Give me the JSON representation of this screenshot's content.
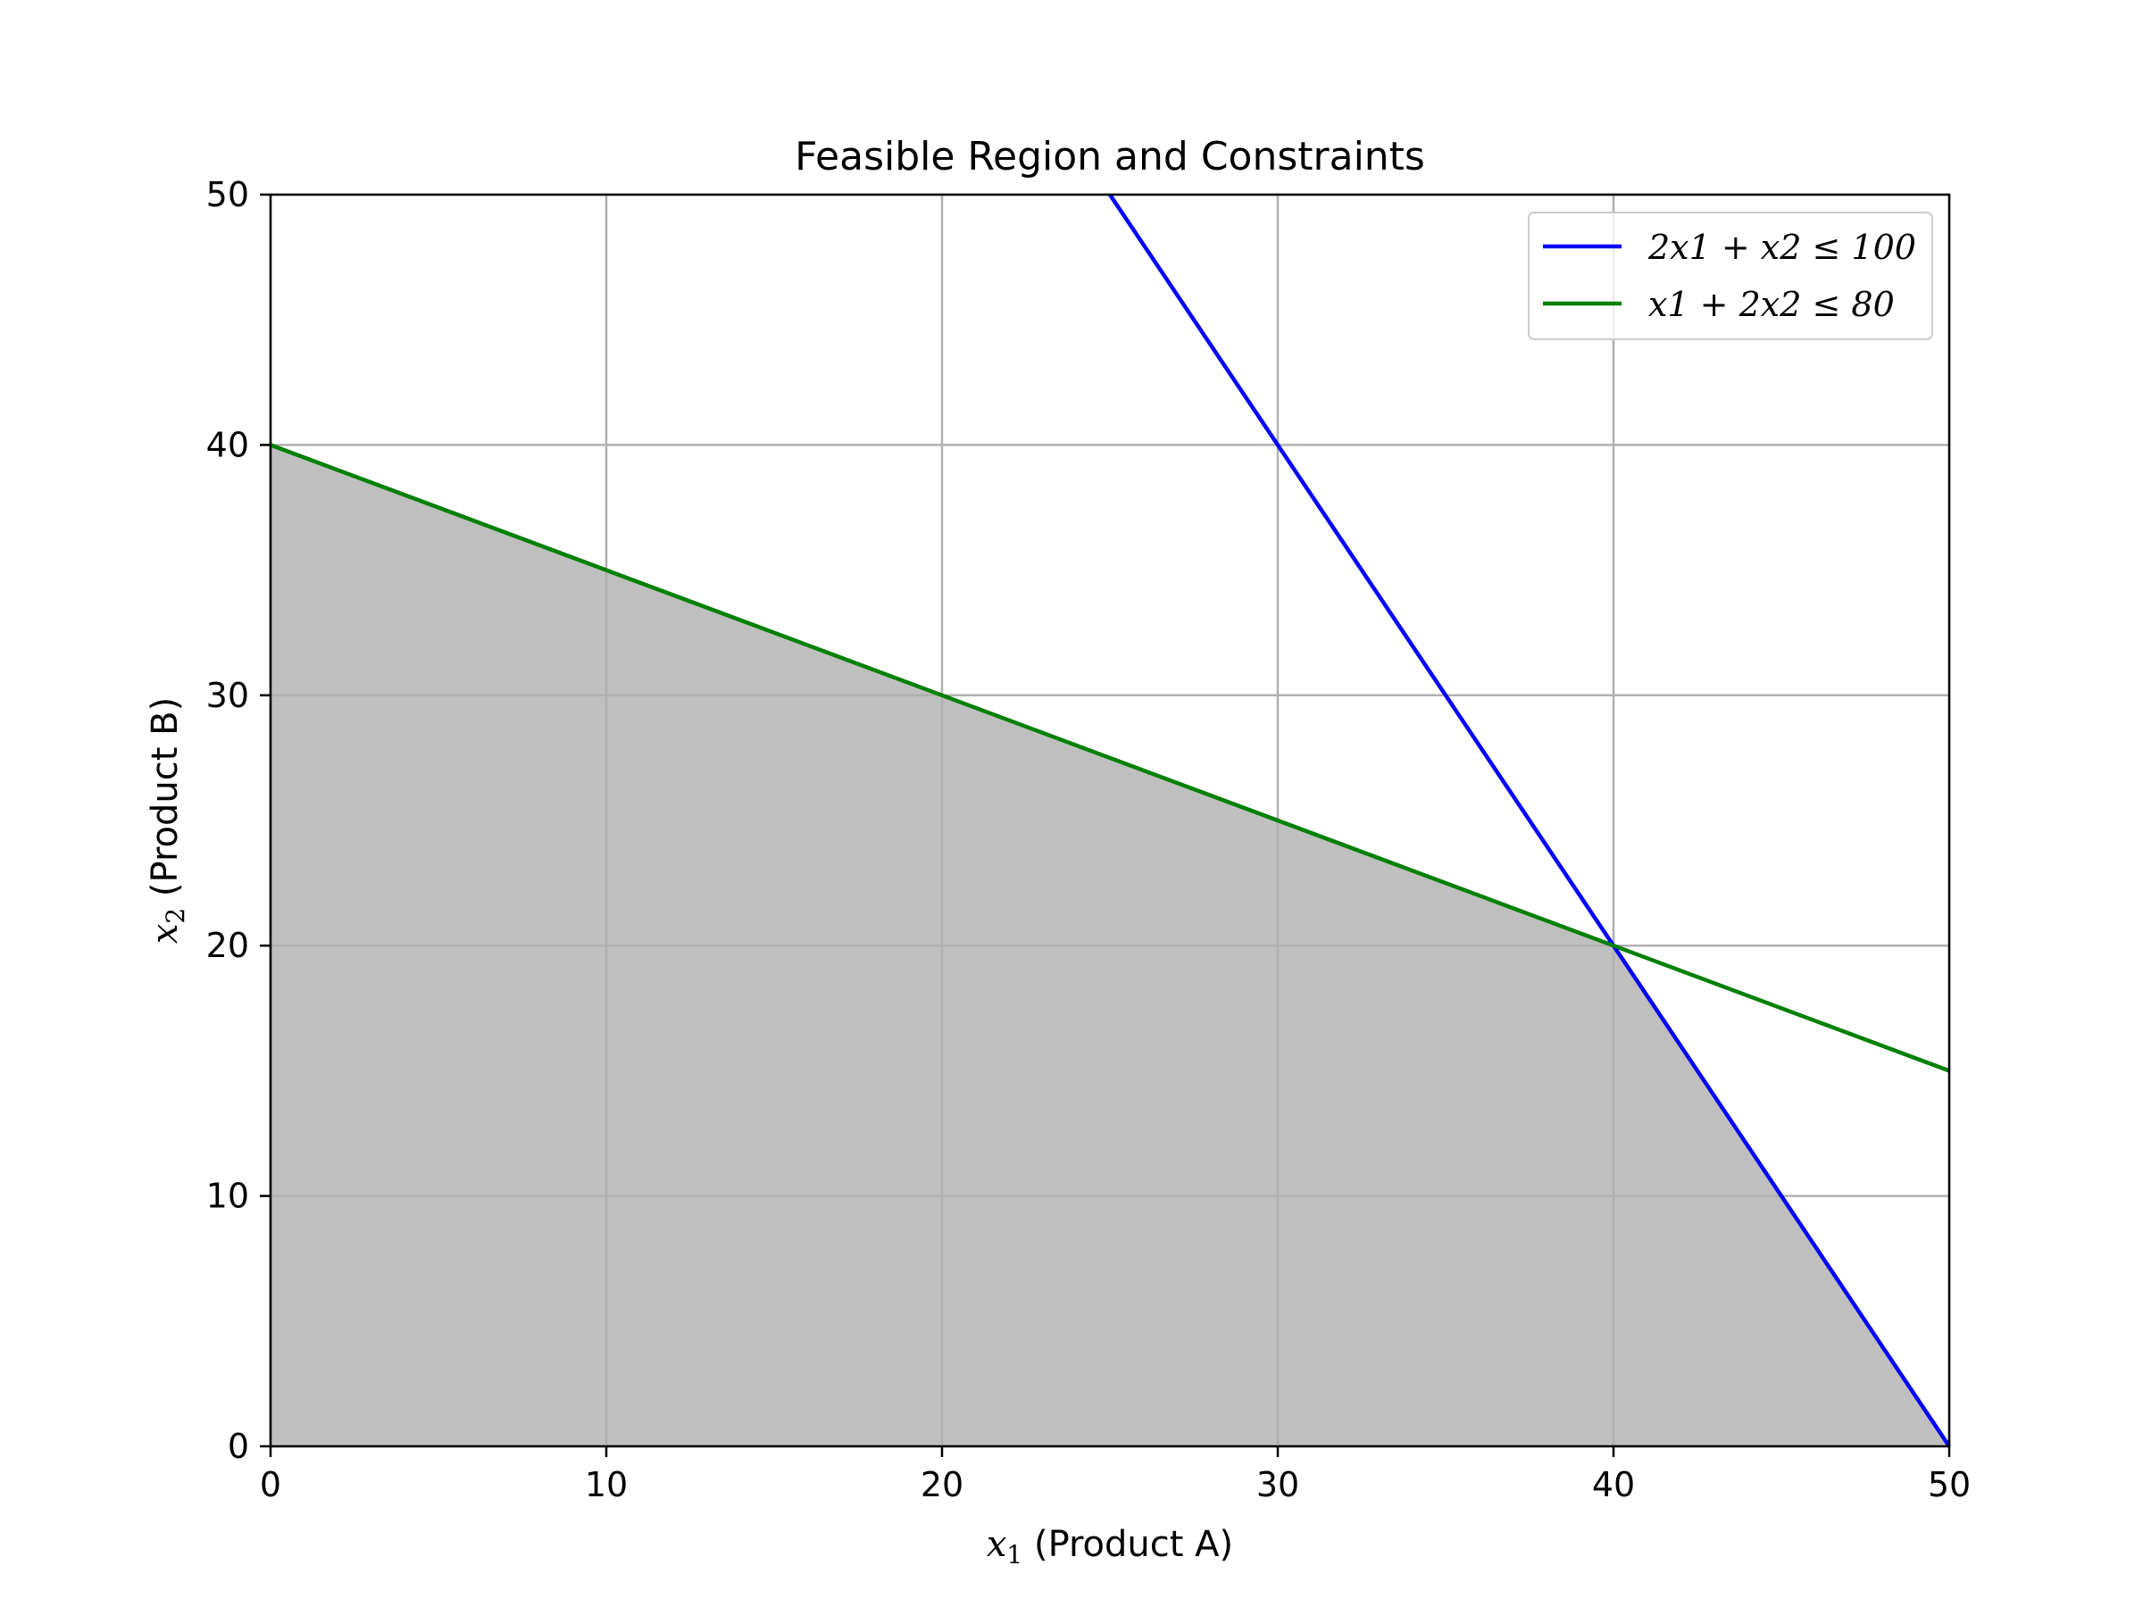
{
  "chart_data": {
    "type": "line",
    "title": "Feasible Region and Constraints",
    "xlabel": {
      "var": "x",
      "sub": "1",
      "rest": " (Product A)"
    },
    "ylabel": {
      "var": "x",
      "sub": "2",
      "rest": " (Product B)"
    },
    "xlim": [
      0,
      50
    ],
    "ylim": [
      0,
      50
    ],
    "xticks": [
      0,
      10,
      20,
      30,
      40,
      50
    ],
    "yticks": [
      0,
      10,
      20,
      30,
      40,
      50
    ],
    "grid": true,
    "legend_position": "top-right",
    "feasible_region": {
      "color": "#bfbfbf",
      "vertices": [
        [
          0,
          0
        ],
        [
          0,
          40
        ],
        [
          40,
          20
        ],
        [
          50,
          0
        ]
      ]
    },
    "series": [
      {
        "name": "2x1 + x2 ≤ 100",
        "color": "#0000ff",
        "x": [
          25,
          30,
          40,
          50
        ],
        "y": [
          50,
          40,
          20,
          0
        ]
      },
      {
        "name": "x1 + 2x2 ≤ 80",
        "color": "#008000",
        "x": [
          0,
          10,
          20,
          30,
          40,
          50
        ],
        "y": [
          40,
          35,
          30,
          25,
          20,
          15
        ]
      }
    ]
  }
}
